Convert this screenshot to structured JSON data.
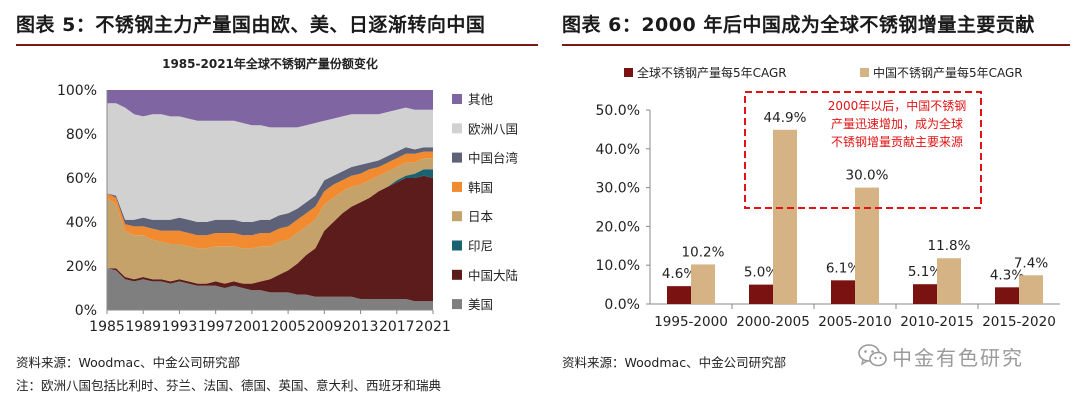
{
  "figure5": {
    "title": "图表 5：不锈钢主力产量国由欧、美、日逐渐转向中国",
    "source": "资料来源：Woodmac、中金公司研究部",
    "note": "注：欧洲八国包括比利时、芬兰、法国、德国、英国、意大利、西班牙和瑞典"
  },
  "figure6": {
    "title": "图表 6：2000 年后中国成为全球不锈钢增量主要贡献",
    "source": "资料来源：Woodmac、中金公司研究部",
    "annotation_lines": [
      "2000年以后，中国不锈钢",
      "产量迅速增加，成为全球",
      "不锈钢增量贡献主要来源"
    ]
  },
  "watermark": "中金有色研究",
  "chart_data": [
    {
      "type": "area",
      "stacked": true,
      "title": "1985-2021年全球不锈钢产量份额变化",
      "xlabel": "",
      "ylabel": "",
      "x": [
        1985,
        1986,
        1987,
        1988,
        1989,
        1990,
        1991,
        1992,
        1993,
        1994,
        1995,
        1996,
        1997,
        1998,
        1999,
        2000,
        2001,
        2002,
        2003,
        2004,
        2005,
        2006,
        2007,
        2008,
        2009,
        2010,
        2011,
        2012,
        2013,
        2014,
        2015,
        2016,
        2017,
        2018,
        2019,
        2020,
        2021
      ],
      "xticks": [
        "1985",
        "1989",
        "1993",
        "1997",
        "2001",
        "2005",
        "2009",
        "2013",
        "2017",
        "2021"
      ],
      "ylim": [
        0,
        100
      ],
      "yticks": [
        "0%",
        "20%",
        "40%",
        "60%",
        "80%",
        "100%"
      ],
      "legend_position": "right",
      "series": [
        {
          "name": "美国",
          "color": "#7f7f7f",
          "values": [
            19,
            18,
            14,
            13,
            14,
            13,
            13,
            12,
            13,
            12,
            11,
            11,
            11,
            10,
            11,
            10,
            9,
            9,
            8,
            8,
            8,
            7,
            7,
            6,
            6,
            6,
            6,
            6,
            5,
            5,
            5,
            5,
            5,
            5,
            4,
            4,
            4
          ]
        },
        {
          "name": "中国大陆",
          "color": "#5c1c1c",
          "values": [
            0,
            1,
            1,
            1,
            1,
            1,
            1,
            1,
            1,
            1,
            1,
            1,
            2,
            2,
            2,
            2,
            3,
            4,
            6,
            8,
            10,
            14,
            18,
            22,
            30,
            34,
            38,
            41,
            44,
            46,
            49,
            51,
            53,
            55,
            56,
            57,
            56
          ]
        },
        {
          "name": "印尼",
          "color": "#1a6272",
          "values": [
            0,
            0,
            0,
            0,
            0,
            0,
            0,
            0,
            0,
            0,
            0,
            0,
            0,
            0,
            0,
            0,
            0,
            0,
            0,
            0,
            0,
            0,
            0,
            0,
            0,
            0,
            0,
            0,
            0,
            0,
            0,
            0,
            1,
            1,
            2,
            3,
            4
          ]
        },
        {
          "name": "日本",
          "color": "#c4a26a",
          "values": [
            32,
            29,
            21,
            20,
            19,
            18,
            17,
            17,
            16,
            16,
            16,
            16,
            16,
            17,
            16,
            16,
            16,
            16,
            15,
            15,
            14,
            14,
            13,
            13,
            12,
            11,
            10,
            9,
            8,
            8,
            7,
            7,
            6,
            6,
            5,
            5,
            5
          ]
        },
        {
          "name": "韩国",
          "color": "#f28a30",
          "values": [
            2,
            3,
            3,
            4,
            4,
            5,
            5,
            6,
            6,
            6,
            6,
            6,
            6,
            6,
            6,
            6,
            6,
            6,
            6,
            6,
            6,
            6,
            6,
            6,
            6,
            6,
            5,
            5,
            5,
            5,
            4,
            4,
            4,
            4,
            4,
            3,
            3
          ]
        },
        {
          "name": "中国台湾",
          "color": "#5e6278",
          "values": [
            0,
            1,
            2,
            3,
            4,
            4,
            5,
            5,
            6,
            6,
            6,
            6,
            6,
            6,
            6,
            6,
            6,
            6,
            6,
            6,
            6,
            5,
            5,
            5,
            5,
            4,
            4,
            4,
            4,
            3,
            3,
            3,
            3,
            3,
            2,
            2,
            2
          ]
        },
        {
          "name": "欧洲八国",
          "color": "#d1d1d1",
          "values": [
            41,
            42,
            51,
            48,
            46,
            48,
            48,
            47,
            46,
            46,
            46,
            46,
            45,
            45,
            45,
            45,
            44,
            43,
            42,
            40,
            39,
            37,
            35,
            33,
            27,
            26,
            25,
            24,
            23,
            22,
            21,
            20,
            19,
            18,
            18,
            17,
            17
          ]
        },
        {
          "name": "其他",
          "color": "#8065a3",
          "values": [
            6,
            6,
            8,
            11,
            12,
            11,
            11,
            12,
            12,
            13,
            14,
            14,
            14,
            14,
            14,
            15,
            16,
            16,
            17,
            17,
            17,
            17,
            16,
            15,
            14,
            13,
            12,
            11,
            11,
            11,
            11,
            10,
            9,
            8,
            9,
            9,
            9
          ]
        }
      ]
    },
    {
      "type": "bar",
      "title": "",
      "xlabel": "",
      "ylabel": "",
      "categories": [
        "1995-2000",
        "2000-2005",
        "2005-2010",
        "2010-2015",
        "2015-2020"
      ],
      "ylim": [
        0,
        50
      ],
      "yticks": [
        "0.0%",
        "10.0%",
        "20.0%",
        "30.0%",
        "40.0%",
        "50.0%"
      ],
      "legend_position": "top",
      "series": [
        {
          "name": "全球不锈钢产量每5年CAGR",
          "color": "#7a1212",
          "values": [
            4.6,
            5.0,
            6.1,
            5.1,
            4.3
          ],
          "labels": [
            "4.6%",
            "5.0%",
            "6.1%",
            "5.1%",
            "4.3%"
          ]
        },
        {
          "name": "中国不锈钢产量每5年CAGR",
          "color": "#d5b385",
          "values": [
            10.2,
            44.9,
            30.0,
            11.8,
            7.4
          ],
          "labels": [
            "10.2%",
            "44.9%",
            "30.0%",
            "11.8%",
            "7.4%"
          ]
        }
      ]
    }
  ]
}
